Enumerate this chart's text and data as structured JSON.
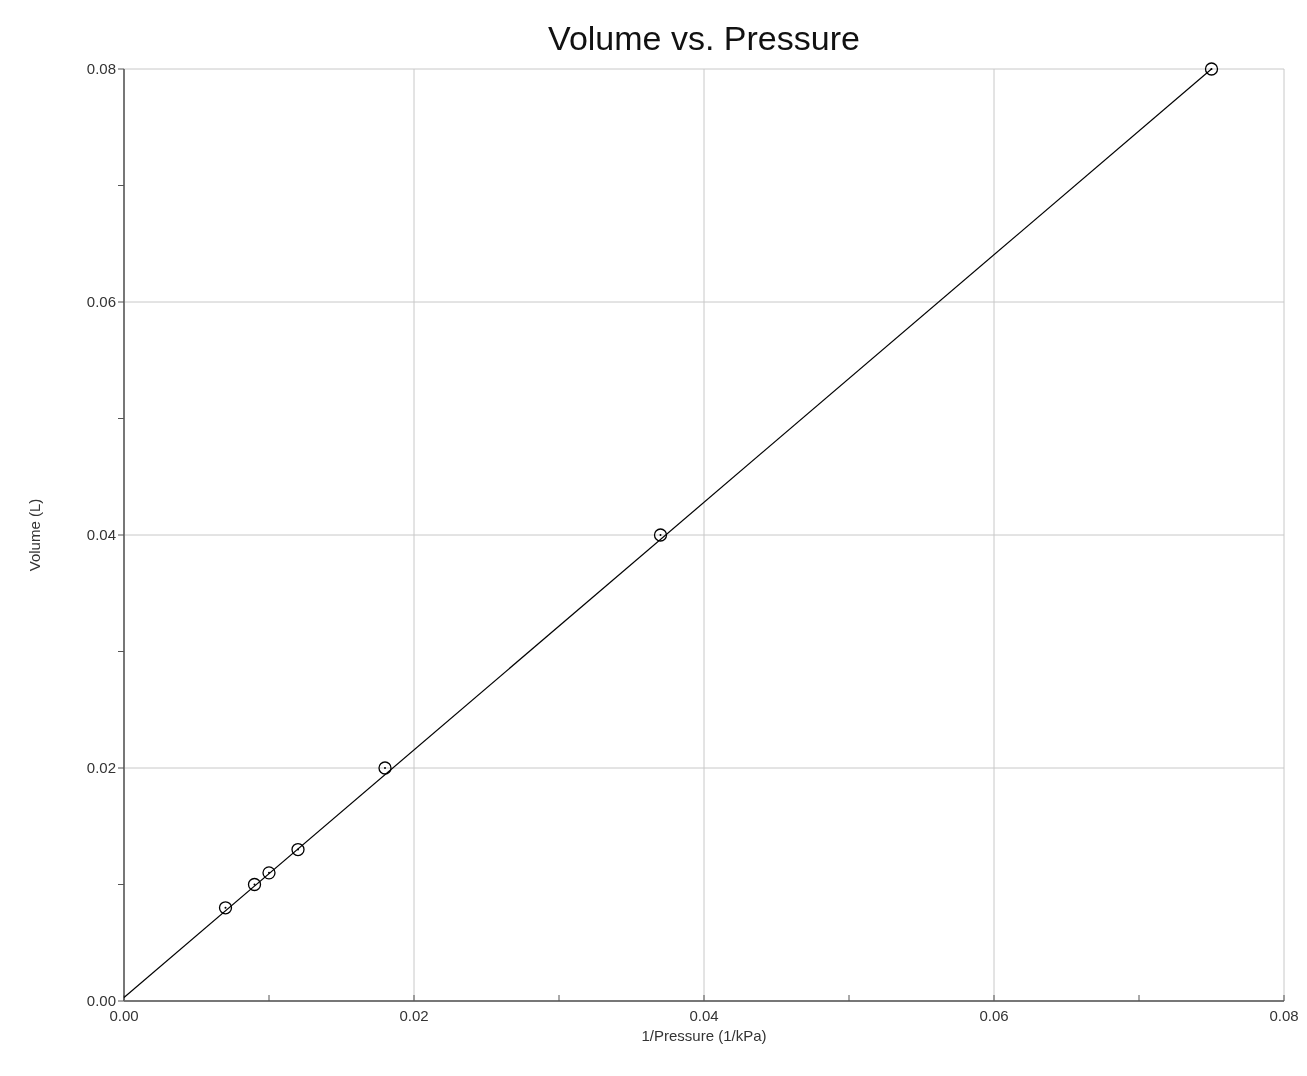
{
  "chart_data": {
    "type": "scatter",
    "title": "Volume vs. Pressure",
    "xlabel": "1/Pressure  (1/kPa)",
    "ylabel": "Volume (L)",
    "xlim": [
      0,
      0.08
    ],
    "ylim": [
      0,
      0.08
    ],
    "xticks": [
      {
        "value": 0,
        "label": "0.00"
      },
      {
        "value": 0.01,
        "label": null
      },
      {
        "value": 0.02,
        "label": "0.02"
      },
      {
        "value": 0.03,
        "label": null
      },
      {
        "value": 0.04,
        "label": "0.04"
      },
      {
        "value": 0.05,
        "label": null
      },
      {
        "value": 0.06,
        "label": "0.06"
      },
      {
        "value": 0.07,
        "label": null
      },
      {
        "value": 0.08,
        "label": "0.08"
      }
    ],
    "yticks": [
      {
        "value": 0,
        "label": "0.00"
      },
      {
        "value": 0.01,
        "label": null
      },
      {
        "value": 0.02,
        "label": "0.02"
      },
      {
        "value": 0.03,
        "label": null
      },
      {
        "value": 0.04,
        "label": "0.04"
      },
      {
        "value": 0.05,
        "label": null
      },
      {
        "value": 0.06,
        "label": "0.06"
      },
      {
        "value": 0.07,
        "label": null
      },
      {
        "value": 0.08,
        "label": "0.08"
      }
    ],
    "grid": true,
    "series": [
      {
        "marker": "circle",
        "color": "#000000",
        "x": [
          0.007,
          0.009,
          0.01,
          0.012,
          0.018,
          0.037,
          0.075
        ],
        "values": [
          0.008,
          0.01,
          0.011,
          0.013,
          0.02,
          0.04,
          0.08
        ]
      },
      {
        "type": "line",
        "color": "#000000",
        "line_style": "solid",
        "x": [
          0,
          0.075
        ],
        "values": [
          0.0003,
          0.08
        ]
      }
    ]
  }
}
